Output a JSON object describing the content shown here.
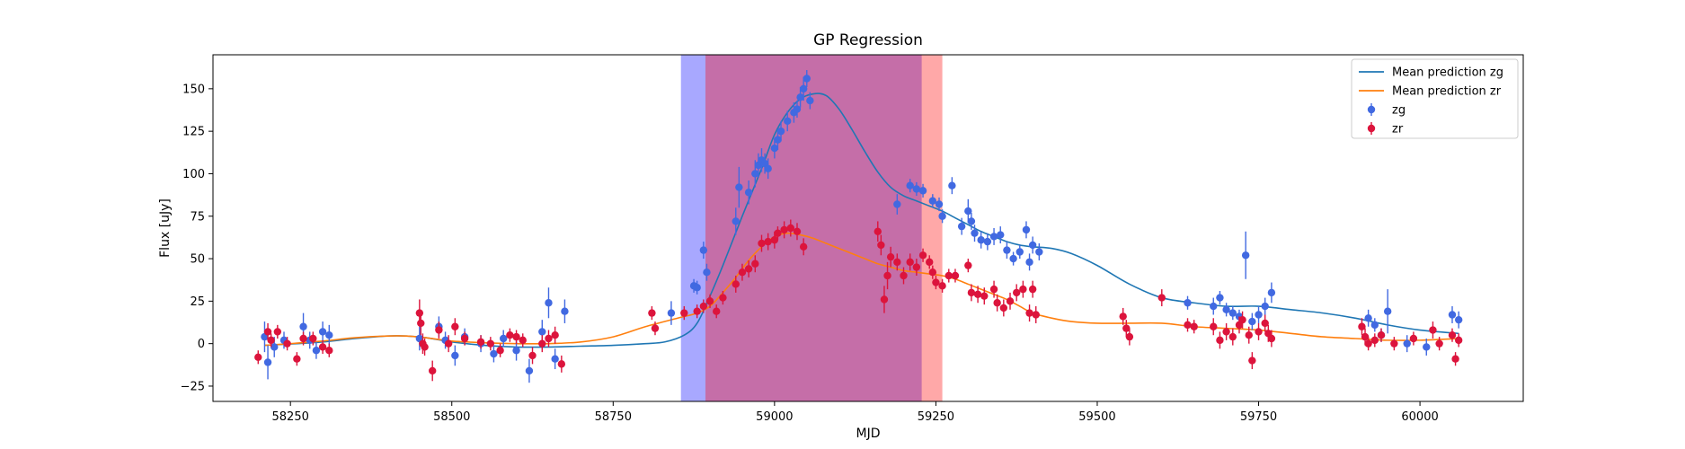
{
  "chart_data": {
    "type": "scatter",
    "title": "GP Regression",
    "xlabel": "MJD",
    "ylabel": "Flux [uJy]",
    "xlim": [
      58130,
      60160
    ],
    "ylim": [
      -34,
      170
    ],
    "xticks": [
      58250,
      58500,
      58750,
      59000,
      59250,
      59500,
      59750,
      60000
    ],
    "yticks": [
      -25,
      0,
      25,
      50,
      75,
      100,
      125,
      150
    ],
    "grid": false,
    "legend_position": "top-right",
    "shaded_regions": [
      {
        "x0": 58855,
        "x1": 59228,
        "color": "#0000ff",
        "opacity": 0.34
      },
      {
        "x0": 58893,
        "x1": 59260,
        "color": "#ff0000",
        "opacity": 0.34
      }
    ],
    "lines": [
      {
        "name": "Mean prediction zg",
        "color": "#1f77b4",
        "x": [
          58210,
          58260,
          58300,
          58350,
          58400,
          58430,
          58460,
          58500,
          58550,
          58600,
          58650,
          58700,
          58750,
          58800,
          58830,
          58860,
          58880,
          58900,
          58920,
          58950,
          58980,
          59000,
          59020,
          59040,
          59060,
          59080,
          59100,
          59120,
          59140,
          59160,
          59180,
          59200,
          59220,
          59240,
          59260,
          59280,
          59300,
          59320,
          59340,
          59360,
          59380,
          59400,
          59430,
          59460,
          59500,
          59550,
          59600,
          59650,
          59700,
          59750,
          59800,
          59850,
          59900,
          59950,
          60000,
          60060
        ],
        "y": [
          -1,
          0,
          1,
          3,
          4.5,
          4.5,
          3.5,
          1,
          -1,
          -2,
          -2,
          -1.5,
          -1,
          0,
          1,
          5,
          12,
          28,
          46,
          75,
          103,
          123,
          136,
          144,
          147,
          146,
          138,
          126,
          113,
          101,
          92,
          87,
          84,
          81,
          78,
          74,
          70,
          66,
          63,
          60,
          58,
          57,
          56,
          53,
          46,
          35,
          27,
          24,
          22,
          22,
          20,
          18,
          15,
          11,
          8,
          6
        ]
      },
      {
        "name": "Mean prediction zr",
        "color": "#ff7f0e",
        "x": [
          58210,
          58250,
          58300,
          58350,
          58400,
          58430,
          58460,
          58500,
          58550,
          58600,
          58650,
          58700,
          58750,
          58800,
          58850,
          58880,
          58900,
          58920,
          58940,
          58960,
          58980,
          59000,
          59020,
          59040,
          59060,
          59080,
          59100,
          59120,
          59140,
          59160,
          59180,
          59200,
          59220,
          59240,
          59260,
          59280,
          59300,
          59320,
          59340,
          59360,
          59380,
          59400,
          59430,
          59460,
          59500,
          59550,
          59600,
          59650,
          59700,
          59750,
          59800,
          59850,
          59900,
          59950,
          60000,
          60060
        ],
        "y": [
          -1,
          0,
          1.5,
          3.5,
          4.5,
          4.5,
          3.5,
          1.5,
          0.5,
          0,
          0,
          1,
          4,
          10,
          15,
          18,
          22,
          30,
          39,
          49,
          57,
          63,
          65,
          64,
          62,
          59,
          56,
          53,
          50,
          47,
          45,
          43,
          42,
          41,
          40,
          38,
          35,
          32,
          29,
          26,
          22,
          18,
          15,
          13,
          12,
          12,
          12,
          10,
          9,
          8,
          6,
          4,
          3,
          2,
          2,
          3
        ]
      }
    ],
    "series": [
      {
        "name": "zg",
        "color": "#4169e1",
        "points": [
          [
            58210,
            4,
            9
          ],
          [
            58215,
            -11,
            10
          ],
          [
            58225,
            -2,
            6
          ],
          [
            58240,
            2,
            5
          ],
          [
            58270,
            10,
            8
          ],
          [
            58280,
            2,
            5
          ],
          [
            58290,
            -4,
            5
          ],
          [
            58300,
            7,
            6
          ],
          [
            58310,
            5,
            6
          ],
          [
            58450,
            3,
            7
          ],
          [
            58480,
            10,
            6
          ],
          [
            58490,
            2,
            5
          ],
          [
            58505,
            -7,
            6
          ],
          [
            58520,
            4,
            5
          ],
          [
            58545,
            0,
            5
          ],
          [
            58565,
            -6,
            5
          ],
          [
            58580,
            3,
            5
          ],
          [
            58600,
            -4,
            6
          ],
          [
            58620,
            -16,
            7
          ],
          [
            58640,
            7,
            7
          ],
          [
            58650,
            24,
            9
          ],
          [
            58660,
            -9,
            6
          ],
          [
            58675,
            19,
            7
          ],
          [
            58840,
            18,
            7
          ],
          [
            58875,
            34,
            4
          ],
          [
            58880,
            33,
            4
          ],
          [
            58895,
            42,
            5
          ],
          [
            58890,
            55,
            5
          ],
          [
            58940,
            72,
            8
          ],
          [
            58945,
            92,
            12
          ],
          [
            58960,
            89,
            7
          ],
          [
            58970,
            100,
            8
          ],
          [
            58975,
            105,
            7
          ],
          [
            58980,
            108,
            7
          ],
          [
            58985,
            106,
            6
          ],
          [
            58990,
            103,
            6
          ],
          [
            59000,
            115,
            6
          ],
          [
            59005,
            120,
            6
          ],
          [
            59010,
            125,
            6
          ],
          [
            59020,
            131,
            6
          ],
          [
            59030,
            136,
            6
          ],
          [
            59035,
            138,
            5
          ],
          [
            59040,
            145,
            6
          ],
          [
            59045,
            150,
            7
          ],
          [
            59050,
            156,
            5
          ],
          [
            59055,
            143,
            5
          ],
          [
            59190,
            82,
            6
          ],
          [
            59210,
            93,
            4
          ],
          [
            59220,
            91,
            4
          ],
          [
            59230,
            90,
            4
          ],
          [
            59245,
            84,
            4
          ],
          [
            59255,
            82,
            4
          ],
          [
            59260,
            75,
            4
          ],
          [
            59275,
            93,
            5
          ],
          [
            59290,
            69,
            5
          ],
          [
            59300,
            78,
            7
          ],
          [
            59305,
            72,
            5
          ],
          [
            59310,
            65,
            5
          ],
          [
            59320,
            61,
            5
          ],
          [
            59330,
            60,
            5
          ],
          [
            59340,
            63,
            5
          ],
          [
            59350,
            64,
            5
          ],
          [
            59360,
            55,
            5
          ],
          [
            59370,
            50,
            4
          ],
          [
            59380,
            54,
            4
          ],
          [
            59390,
            67,
            5
          ],
          [
            59395,
            48,
            5
          ],
          [
            59400,
            58,
            5
          ],
          [
            59410,
            54,
            5
          ],
          [
            59640,
            24,
            4
          ],
          [
            59680,
            22,
            5
          ],
          [
            59690,
            27,
            4
          ],
          [
            59700,
            20,
            4
          ],
          [
            59710,
            18,
            4
          ],
          [
            59720,
            16,
            4
          ],
          [
            59730,
            52,
            14
          ],
          [
            59740,
            13,
            5
          ],
          [
            59750,
            17,
            5
          ],
          [
            59760,
            22,
            5
          ],
          [
            59770,
            30,
            6
          ],
          [
            59920,
            15,
            5
          ],
          [
            59930,
            11,
            4
          ],
          [
            59940,
            5,
            4
          ],
          [
            59950,
            19,
            13
          ],
          [
            59980,
            0,
            5
          ],
          [
            60010,
            -2,
            5
          ],
          [
            60050,
            17,
            5
          ],
          [
            60060,
            14,
            5
          ]
        ]
      },
      {
        "name": "zr",
        "color": "#dc143c",
        "points": [
          [
            58200,
            -8,
            4
          ],
          [
            58215,
            7,
            5
          ],
          [
            58220,
            2,
            4
          ],
          [
            58230,
            7,
            4
          ],
          [
            58245,
            0,
            4
          ],
          [
            58260,
            -9,
            4
          ],
          [
            58270,
            3,
            4
          ],
          [
            58285,
            3,
            4
          ],
          [
            58300,
            -2,
            4
          ],
          [
            58310,
            -4,
            4
          ],
          [
            58450,
            18,
            8
          ],
          [
            58452,
            12,
            7
          ],
          [
            58455,
            0,
            6
          ],
          [
            58458,
            -2,
            5
          ],
          [
            58470,
            -16,
            6
          ],
          [
            58480,
            8,
            5
          ],
          [
            58495,
            0,
            5
          ],
          [
            58505,
            10,
            5
          ],
          [
            58520,
            3,
            4
          ],
          [
            58545,
            1,
            4
          ],
          [
            58560,
            0,
            4
          ],
          [
            58575,
            -4,
            4
          ],
          [
            58590,
            5,
            4
          ],
          [
            58600,
            4,
            4
          ],
          [
            58610,
            2,
            4
          ],
          [
            58625,
            -7,
            5
          ],
          [
            58640,
            0,
            5
          ],
          [
            58650,
            3,
            5
          ],
          [
            58660,
            5,
            5
          ],
          [
            58670,
            -12,
            5
          ],
          [
            58810,
            18,
            4
          ],
          [
            58815,
            9,
            4
          ],
          [
            58860,
            18,
            4
          ],
          [
            58880,
            19,
            4
          ],
          [
            58890,
            22,
            4
          ],
          [
            58900,
            25,
            4
          ],
          [
            58910,
            19,
            4
          ],
          [
            58920,
            27,
            4
          ],
          [
            58940,
            35,
            5
          ],
          [
            58950,
            42,
            5
          ],
          [
            58960,
            44,
            5
          ],
          [
            58970,
            47,
            5
          ],
          [
            58980,
            59,
            5
          ],
          [
            58990,
            60,
            5
          ],
          [
            59000,
            61,
            5
          ],
          [
            59005,
            65,
            4
          ],
          [
            59015,
            67,
            5
          ],
          [
            59025,
            68,
            5
          ],
          [
            59035,
            66,
            5
          ],
          [
            59045,
            57,
            5
          ],
          [
            59160,
            66,
            6
          ],
          [
            59165,
            58,
            6
          ],
          [
            59170,
            26,
            8
          ],
          [
            59175,
            40,
            8
          ],
          [
            59180,
            51,
            6
          ],
          [
            59190,
            48,
            5
          ],
          [
            59200,
            40,
            5
          ],
          [
            59210,
            48,
            5
          ],
          [
            59220,
            45,
            5
          ],
          [
            59230,
            52,
            4
          ],
          [
            59240,
            48,
            4
          ],
          [
            59245,
            42,
            4
          ],
          [
            59250,
            36,
            4
          ],
          [
            59260,
            34,
            4
          ],
          [
            59270,
            40,
            4
          ],
          [
            59280,
            40,
            4
          ],
          [
            59300,
            46,
            4
          ],
          [
            59305,
            30,
            5
          ],
          [
            59315,
            29,
            5
          ],
          [
            59325,
            28,
            5
          ],
          [
            59340,
            32,
            5
          ],
          [
            59345,
            24,
            5
          ],
          [
            59355,
            21,
            5
          ],
          [
            59365,
            25,
            5
          ],
          [
            59375,
            30,
            5
          ],
          [
            59385,
            32,
            5
          ],
          [
            59395,
            18,
            5
          ],
          [
            59400,
            32,
            5
          ],
          [
            59405,
            17,
            5
          ],
          [
            59540,
            16,
            5
          ],
          [
            59545,
            9,
            5
          ],
          [
            59550,
            4,
            5
          ],
          [
            59600,
            27,
            5
          ],
          [
            59640,
            11,
            4
          ],
          [
            59650,
            10,
            4
          ],
          [
            59680,
            10,
            5
          ],
          [
            59690,
            2,
            5
          ],
          [
            59700,
            7,
            5
          ],
          [
            59710,
            4,
            5
          ],
          [
            59720,
            11,
            5
          ],
          [
            59725,
            14,
            5
          ],
          [
            59735,
            5,
            5
          ],
          [
            59740,
            -10,
            5
          ],
          [
            59750,
            7,
            5
          ],
          [
            59760,
            12,
            5
          ],
          [
            59765,
            6,
            5
          ],
          [
            59770,
            3,
            5
          ],
          [
            59910,
            10,
            5
          ],
          [
            59915,
            4,
            5
          ],
          [
            59920,
            0,
            4
          ],
          [
            59930,
            2,
            4
          ],
          [
            59940,
            5,
            4
          ],
          [
            59960,
            0,
            4
          ],
          [
            59990,
            3,
            4
          ],
          [
            60020,
            8,
            5
          ],
          [
            60030,
            0,
            4
          ],
          [
            60050,
            5,
            4
          ],
          [
            60055,
            -9,
            4
          ],
          [
            60060,
            2,
            4
          ]
        ]
      }
    ]
  }
}
